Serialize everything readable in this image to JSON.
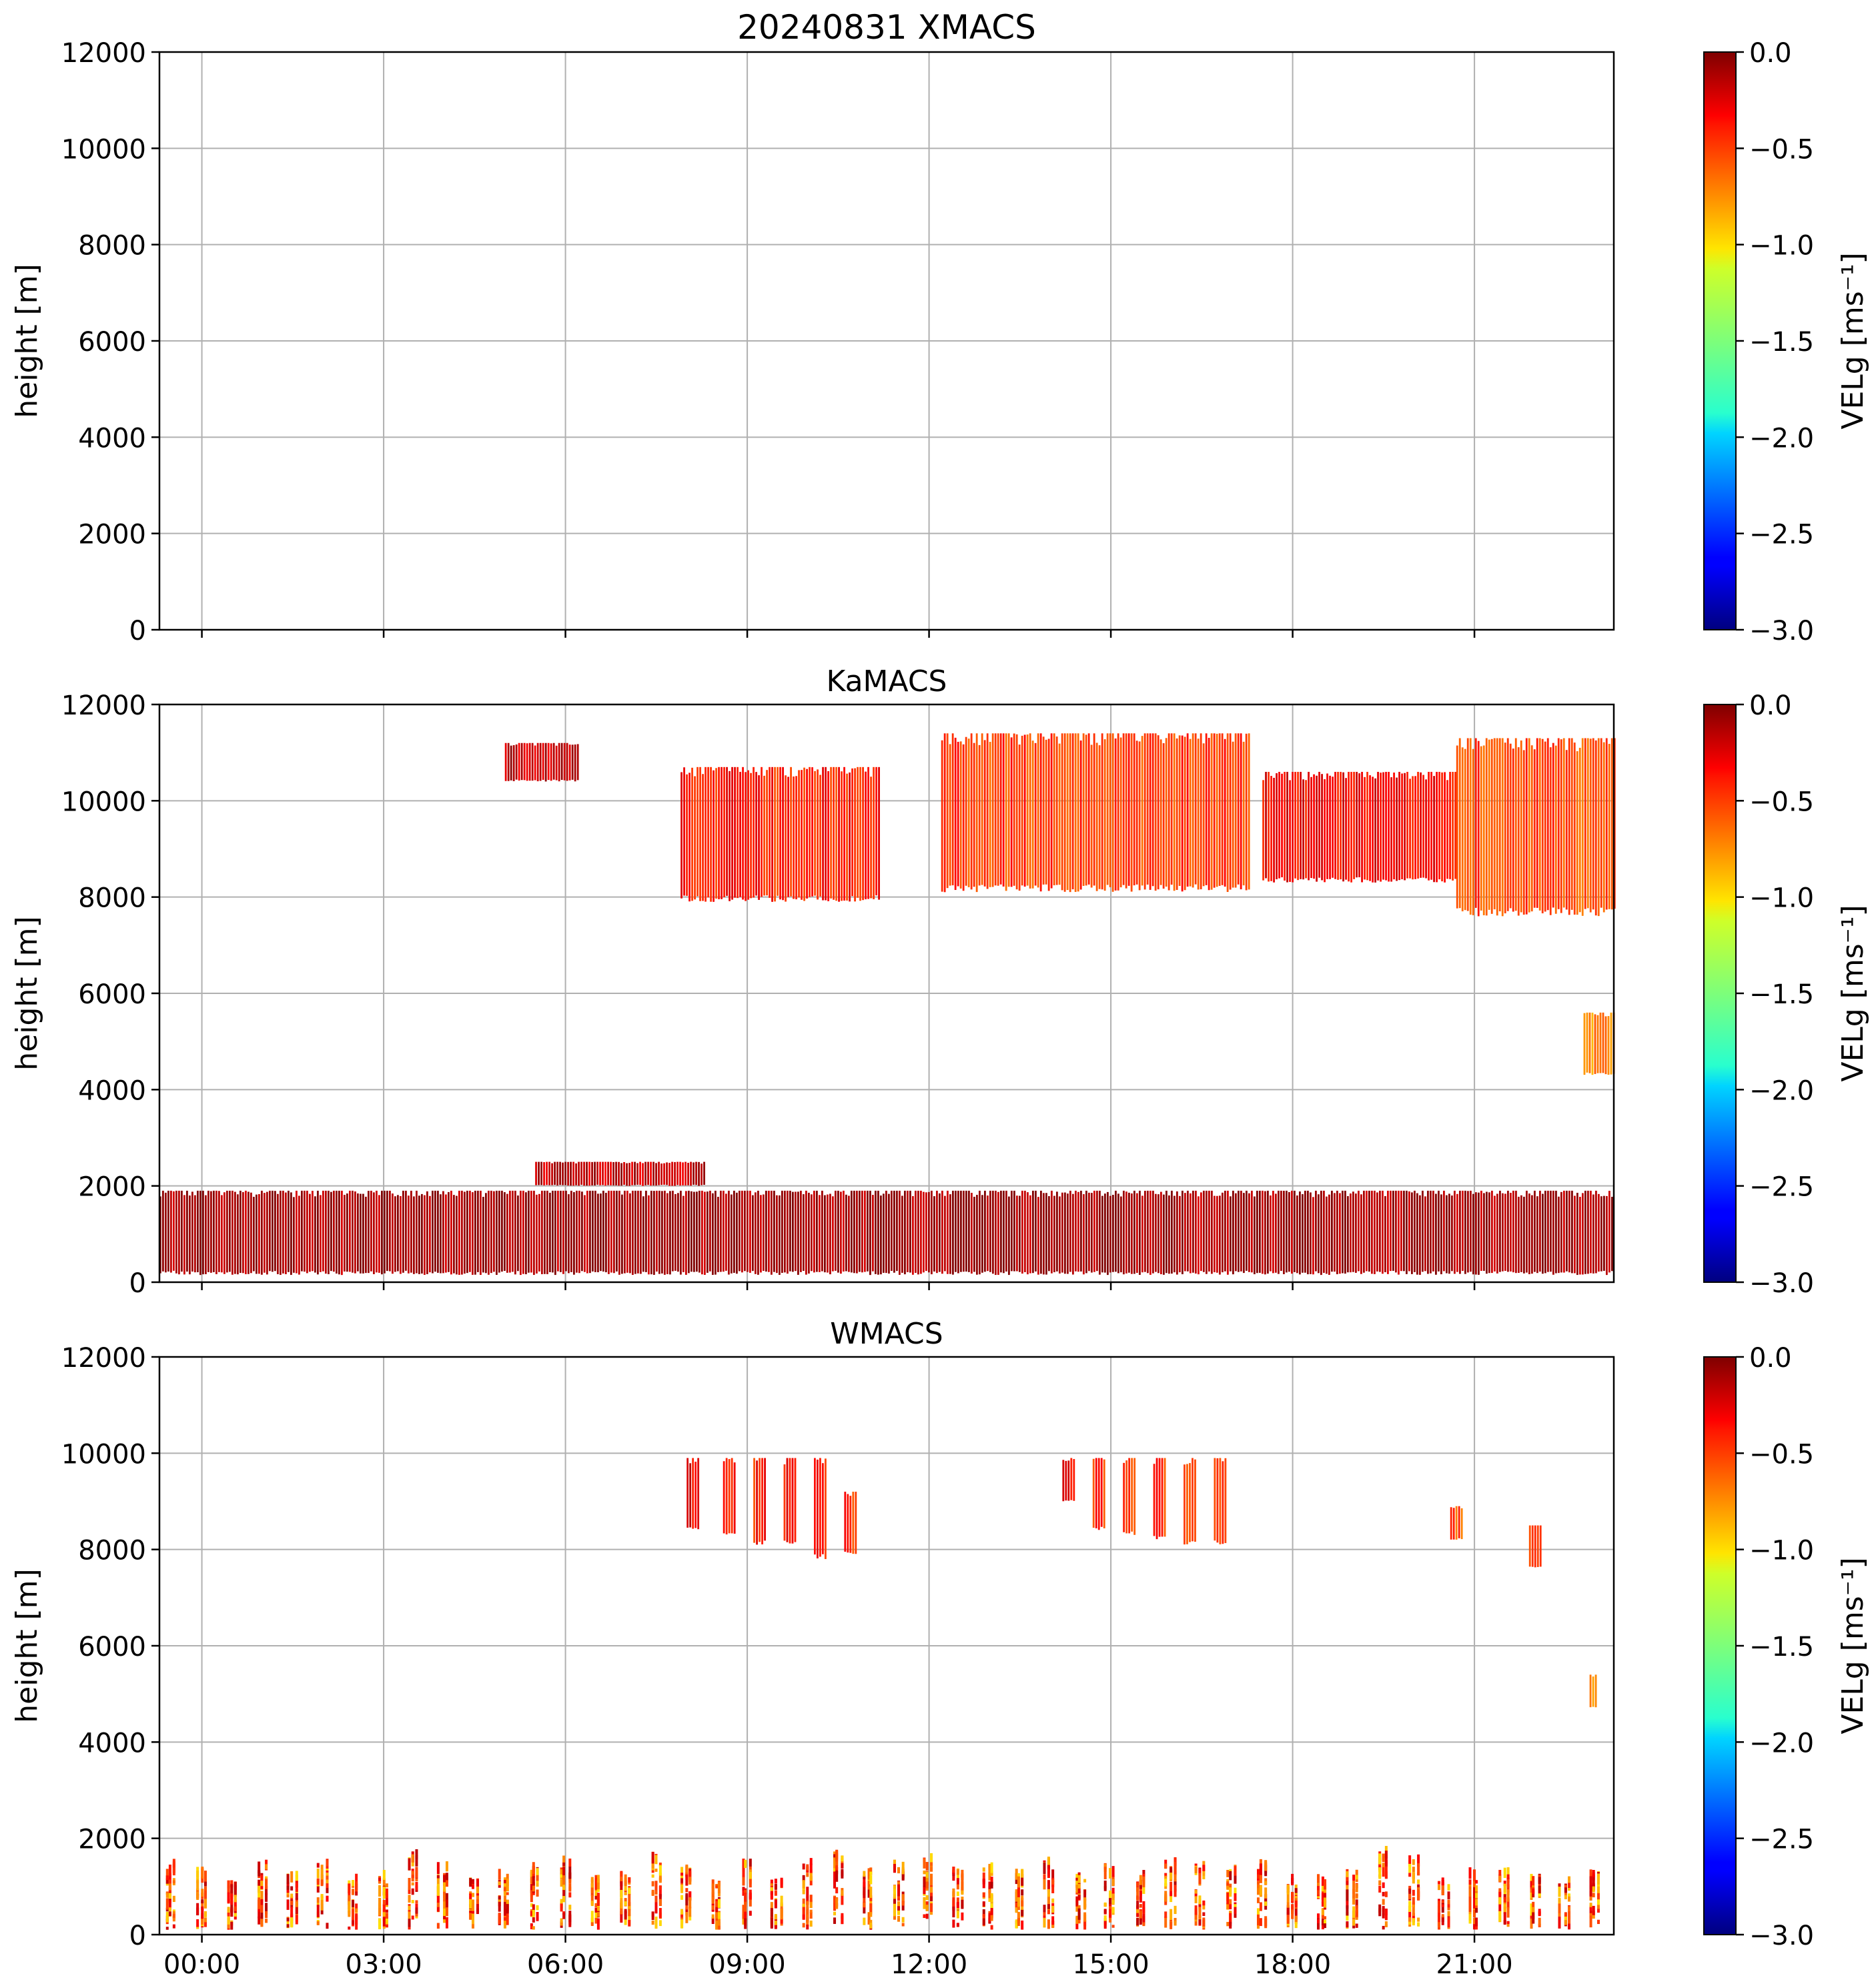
{
  "chart_data": [
    {
      "type": "heatmap",
      "title": "20240831 XMACS",
      "xlabel": "",
      "ylabel": "height [m]",
      "ylim": [
        0,
        12000
      ],
      "xlim_hours": [
        -0.7,
        23.3
      ],
      "yticks": [
        0,
        2000,
        4000,
        6000,
        8000,
        10000,
        12000
      ],
      "xticks_hours": [
        0,
        3,
        6,
        9,
        12,
        15,
        18,
        21
      ],
      "xtick_labels": [
        "00:00",
        "03:00",
        "06:00",
        "09:00",
        "12:00",
        "15:00",
        "18:00",
        "21:00"
      ],
      "grid": true,
      "colorbar": {
        "label": "VELg [ms⁻¹]",
        "range": [
          -3.0,
          0.0
        ],
        "colormap": "jet",
        "ticks": [
          "0.0",
          "−0.5",
          "−1.0",
          "−1.5",
          "−2.0",
          "−2.5",
          "−3.0"
        ]
      },
      "regions": []
    },
    {
      "type": "heatmap",
      "title": "KaMACS",
      "xlabel": "",
      "ylabel": "height [m]",
      "ylim": [
        0,
        12000
      ],
      "xlim_hours": [
        -0.7,
        23.3
      ],
      "yticks": [
        0,
        2000,
        4000,
        6000,
        8000,
        10000,
        12000
      ],
      "xticks_hours": [
        0,
        3,
        6,
        9,
        12,
        15,
        18,
        21
      ],
      "xtick_labels": [
        "00:00",
        "03:00",
        "06:00",
        "09:00",
        "12:00",
        "15:00",
        "18:00",
        "21:00"
      ],
      "grid": true,
      "colorbar": {
        "label": "VELg [ms⁻¹]",
        "range": [
          -3.0,
          0.0
        ],
        "colormap": "jet",
        "ticks": [
          "0.0",
          "−0.5",
          "−1.0",
          "−1.5",
          "−2.0",
          "−2.5",
          "−3.0"
        ]
      },
      "regions": [
        {
          "name": "boundary-layer-echo",
          "t_start": -0.7,
          "t_end": 23.3,
          "h_bottom": 150,
          "h_top": 1900,
          "vel": -0.1
        },
        {
          "name": "elevated-echo-0630-0830",
          "t_start": 5.5,
          "t_end": 8.3,
          "h_bottom": 2000,
          "h_top": 2500,
          "vel": -0.2
        },
        {
          "name": "cirrus-0515-0615",
          "t_start": 5.0,
          "t_end": 6.2,
          "h_bottom": 10400,
          "h_top": 11200,
          "vel": -0.2
        },
        {
          "name": "cirrus-0800-1100",
          "t_start": 7.9,
          "t_end": 11.2,
          "h_bottom": 7900,
          "h_top": 10700,
          "vel": -0.45
        },
        {
          "name": "cirrus-1200-1730",
          "t_start": 12.2,
          "t_end": 17.3,
          "h_bottom": 8100,
          "h_top": 11400,
          "vel": -0.55
        },
        {
          "name": "cirrus-1730-2045",
          "t_start": 17.5,
          "t_end": 20.7,
          "h_bottom": 8300,
          "h_top": 10600,
          "vel": -0.35
        },
        {
          "name": "cirrus-2045-2320",
          "t_start": 20.7,
          "t_end": 23.3,
          "h_bottom": 7600,
          "h_top": 11300,
          "vel": -0.6
        },
        {
          "name": "midlevel-echo-2300",
          "t_start": 22.8,
          "t_end": 23.3,
          "h_bottom": 4300,
          "h_top": 5600,
          "vel": -0.75
        }
      ]
    },
    {
      "type": "heatmap",
      "title": "WMACS",
      "xlabel": "",
      "ylabel": "height [m]",
      "ylim": [
        0,
        12000
      ],
      "xlim_hours": [
        -0.7,
        23.3
      ],
      "yticks": [
        0,
        2000,
        4000,
        6000,
        8000,
        10000,
        12000
      ],
      "xticks_hours": [
        0,
        3,
        6,
        9,
        12,
        15,
        18,
        21
      ],
      "xtick_labels": [
        "00:00",
        "03:00",
        "06:00",
        "09:00",
        "12:00",
        "15:00",
        "18:00",
        "21:00"
      ],
      "grid": true,
      "colorbar": {
        "label": "VELg [ms⁻¹]",
        "range": [
          -3.0,
          0.0
        ],
        "colormap": "jet",
        "ticks": [
          "0.0",
          "−0.5",
          "−1.0",
          "−1.5",
          "−2.0",
          "−2.5",
          "−3.0"
        ]
      },
      "regions": [
        {
          "name": "stripe-0900",
          "t_start": 8.0,
          "t_end": 8.2,
          "h_bottom": 8400,
          "h_top": 9900,
          "vel": -0.35
        },
        {
          "name": "stripe-0935",
          "t_start": 8.6,
          "t_end": 8.8,
          "h_bottom": 8300,
          "h_top": 9900,
          "vel": -0.45
        },
        {
          "name": "stripe-1005",
          "t_start": 9.1,
          "t_end": 9.3,
          "h_bottom": 8100,
          "h_top": 9900,
          "vel": -0.45
        },
        {
          "name": "stripe-1035",
          "t_start": 9.6,
          "t_end": 9.8,
          "h_bottom": 8100,
          "h_top": 9900,
          "vel": -0.4
        },
        {
          "name": "stripe-1100",
          "t_start": 10.1,
          "t_end": 10.3,
          "h_bottom": 7800,
          "h_top": 9900,
          "vel": -0.45
        },
        {
          "name": "stripe-1120",
          "t_start": 10.6,
          "t_end": 10.8,
          "h_bottom": 7900,
          "h_top": 9200,
          "vel": -0.5
        },
        {
          "name": "stripe-1400",
          "t_start": 14.2,
          "t_end": 14.4,
          "h_bottom": 9000,
          "h_top": 9900,
          "vel": -0.4
        },
        {
          "name": "stripe-1430",
          "t_start": 14.7,
          "t_end": 14.9,
          "h_bottom": 8400,
          "h_top": 9900,
          "vel": -0.5
        },
        {
          "name": "stripe-1500",
          "t_start": 15.2,
          "t_end": 15.4,
          "h_bottom": 8300,
          "h_top": 9900,
          "vel": -0.55
        },
        {
          "name": "stripe-1530",
          "t_start": 15.7,
          "t_end": 15.9,
          "h_bottom": 8200,
          "h_top": 9900,
          "vel": -0.5
        },
        {
          "name": "stripe-1600",
          "t_start": 16.2,
          "t_end": 16.4,
          "h_bottom": 8100,
          "h_top": 9900,
          "vel": -0.55
        },
        {
          "name": "stripe-1630",
          "t_start": 16.7,
          "t_end": 16.9,
          "h_bottom": 8100,
          "h_top": 9900,
          "vel": -0.5
        },
        {
          "name": "patch-2100",
          "t_start": 20.6,
          "t_end": 20.8,
          "h_bottom": 8200,
          "h_top": 8900,
          "vel": -0.6
        },
        {
          "name": "patch-2245",
          "t_start": 21.9,
          "t_end": 22.1,
          "h_bottom": 7600,
          "h_top": 8500,
          "vel": -0.55
        },
        {
          "name": "patch-2300",
          "t_start": 22.9,
          "t_end": 23.0,
          "h_bottom": 4700,
          "h_top": 5400,
          "vel": -0.8
        }
      ],
      "low_level_columns": {
        "t_start": -0.7,
        "t_end": 23.3,
        "period_hours": 0.5,
        "h_top_range": [
          1000,
          1700
        ],
        "vel": -0.15
      }
    }
  ]
}
